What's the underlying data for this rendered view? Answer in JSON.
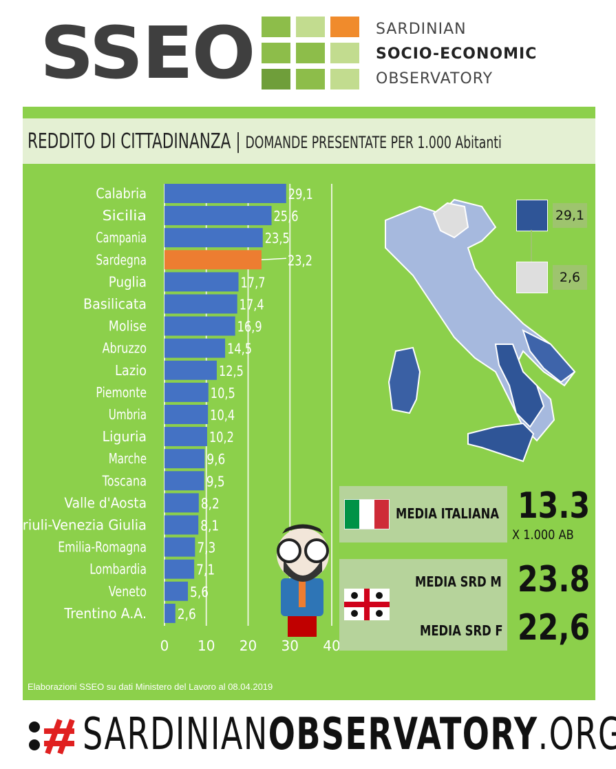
{
  "header": {
    "logo_text": "SSEO",
    "org_line1": "SARDINIAN",
    "org_line2": "SOCIO-ECONOMIC",
    "org_line3": "OBSERVATORY",
    "grid_colors": [
      "#8dbd4a",
      "#c2dc8f",
      "#c2dc8f",
      "#f08b2c",
      "#8dbd4a",
      "#8dbd4a",
      "#c2dc8f",
      "#8dbd4a",
      "#6f9e3a",
      "#8dbd4a",
      "#8dbd4a"
    ]
  },
  "title": {
    "main": "REDDITO DI CITTADINANZA",
    "separator": " | ",
    "sub": "DOMANDE PRESENTATE PER 1.000 Abitanti"
  },
  "colors": {
    "panel": "#8cd04b",
    "bar": "#4472c4",
    "bar_highlight": "#ed7d31",
    "map_high": "#2f5597",
    "map_low": "#dedede"
  },
  "chart_data": {
    "type": "bar",
    "orientation": "horizontal",
    "categories": [
      "Calabria",
      "Sicilia",
      "Campania",
      "Sardegna",
      "Puglia",
      "Basilicata",
      "Molise",
      "Abruzzo",
      "Lazio",
      "Piemonte",
      "Umbria",
      "Liguria",
      "Marche",
      "Toscana",
      "Valle d'Aosta",
      "Friuli-Venezia Giulia",
      "Emilia-Romagna",
      "Lombardia",
      "Veneto",
      "Trentino A.A."
    ],
    "values": [
      29.1,
      25.6,
      23.5,
      23.2,
      17.7,
      17.4,
      16.9,
      14.5,
      12.5,
      10.5,
      10.4,
      10.2,
      9.6,
      9.5,
      8.2,
      8.1,
      7.3,
      7.1,
      5.6,
      2.6
    ],
    "value_labels": [
      "29,1",
      "25,6",
      "23,5",
      "23,2",
      "17,7",
      "17,4",
      "16,9",
      "14,5",
      "12,5",
      "10,5",
      "10,4",
      "10,2",
      "9,6",
      "9,5",
      "8,2",
      "8,1",
      "7,3",
      "7,1",
      "5,6",
      "2,6"
    ],
    "highlight": "Sardegna",
    "xlim": [
      0,
      40
    ],
    "xticks": [
      0,
      10,
      20,
      30,
      40
    ],
    "grid": true
  },
  "map_legend": {
    "max_label": "29,1",
    "min_label": "2,6"
  },
  "media": {
    "it_label": "MEDIA ITALIANA",
    "it_value": "13.3",
    "it_unit": "X 1.000 AB",
    "srd_m_label": "MEDIA SRD M",
    "srd_m_value": "23.8",
    "srd_f_label": "MEDIA SRD F",
    "srd_f_value": "22,6"
  },
  "footer": {
    "note": "Elaborazioni SSEO su dati Ministero del Lavoro al 08.04.2019",
    "site_regular": "SARDINIAN",
    "site_bold": "OBSERVATORY",
    "site_tail": ".ORG"
  }
}
